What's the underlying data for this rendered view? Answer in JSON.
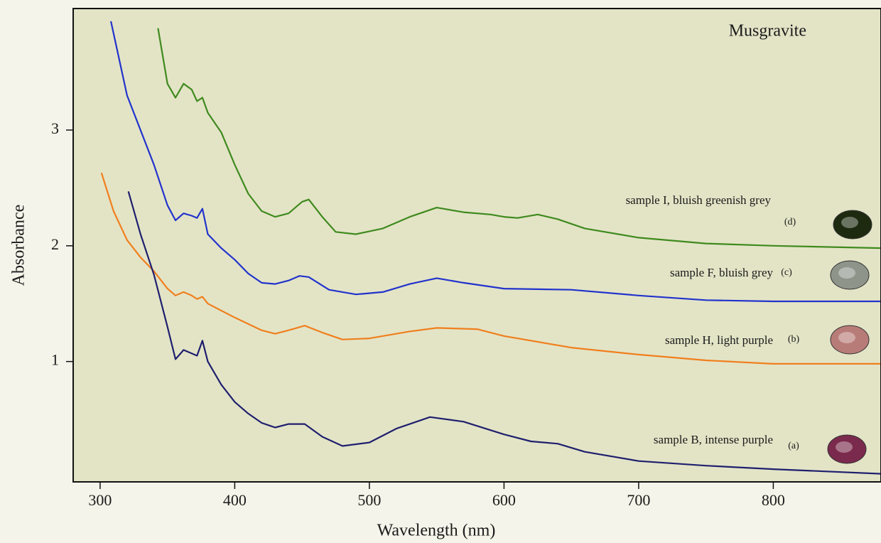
{
  "chart_data": {
    "type": "line",
    "title": "Musgravite",
    "x_label": "Wavelength (nm)",
    "y_label": "Absorbance",
    "xlim": [
      280,
      880
    ],
    "ylim": [
      -0.04,
      4.05
    ],
    "xticks": [
      300,
      400,
      500,
      600,
      700,
      800
    ],
    "yticks": [
      1,
      2,
      3
    ],
    "grid": false,
    "series": [
      {
        "name": "sample I, bluish greenish grey",
        "tag": "(d)",
        "color": "#3f8a1e",
        "x": [
          343,
          350,
          356,
          362,
          368,
          372,
          376,
          380,
          390,
          400,
          410,
          420,
          430,
          440,
          450,
          455,
          465,
          475,
          490,
          510,
          530,
          550,
          570,
          590,
          600,
          610,
          625,
          640,
          660,
          700,
          750,
          800,
          880
        ],
        "values": [
          3.88,
          3.4,
          3.28,
          3.4,
          3.35,
          3.25,
          3.28,
          3.15,
          2.98,
          2.7,
          2.45,
          2.3,
          2.25,
          2.28,
          2.38,
          2.4,
          2.25,
          2.12,
          2.1,
          2.15,
          2.25,
          2.33,
          2.29,
          2.27,
          2.25,
          2.24,
          2.27,
          2.23,
          2.15,
          2.07,
          2.02,
          2.0,
          1.98
        ]
      },
      {
        "name": "sample F, bluish grey",
        "tag": "(c)",
        "color": "#2233cc",
        "x": [
          308,
          320,
          340,
          350,
          356,
          362,
          368,
          372,
          376,
          380,
          390,
          400,
          410,
          420,
          430,
          440,
          448,
          455,
          470,
          490,
          510,
          530,
          550,
          570,
          600,
          650,
          700,
          750,
          800,
          880
        ],
        "values": [
          3.94,
          3.3,
          2.7,
          2.35,
          2.22,
          2.28,
          2.26,
          2.24,
          2.32,
          2.1,
          1.98,
          1.88,
          1.76,
          1.68,
          1.67,
          1.7,
          1.74,
          1.73,
          1.62,
          1.58,
          1.6,
          1.67,
          1.72,
          1.68,
          1.63,
          1.62,
          1.57,
          1.53,
          1.52,
          1.52
        ]
      },
      {
        "name": "sample H, light purple",
        "tag": "(b)",
        "color": "#f07f1e",
        "x": [
          301,
          310,
          320,
          330,
          340,
          350,
          356,
          362,
          368,
          372,
          376,
          380,
          390,
          400,
          420,
          430,
          440,
          452,
          465,
          480,
          500,
          530,
          550,
          580,
          600,
          650,
          700,
          750,
          800,
          880
        ],
        "values": [
          2.63,
          2.3,
          2.05,
          1.9,
          1.78,
          1.63,
          1.57,
          1.6,
          1.57,
          1.54,
          1.56,
          1.5,
          1.44,
          1.38,
          1.27,
          1.24,
          1.27,
          1.31,
          1.25,
          1.19,
          1.2,
          1.26,
          1.29,
          1.28,
          1.22,
          1.12,
          1.06,
          1.01,
          0.98,
          0.98
        ]
      },
      {
        "name": "sample B, intense purple",
        "tag": "(a)",
        "color": "#1f1f6e",
        "x": [
          321,
          330,
          340,
          350,
          356,
          362,
          368,
          372,
          376,
          380,
          390,
          400,
          410,
          420,
          430,
          440,
          452,
          465,
          480,
          500,
          520,
          545,
          570,
          600,
          620,
          640,
          660,
          700,
          750,
          800,
          880
        ],
        "values": [
          2.47,
          2.1,
          1.75,
          1.3,
          1.02,
          1.1,
          1.07,
          1.05,
          1.18,
          1.0,
          0.8,
          0.65,
          0.55,
          0.47,
          0.43,
          0.46,
          0.46,
          0.35,
          0.27,
          0.3,
          0.42,
          0.52,
          0.48,
          0.37,
          0.31,
          0.29,
          0.22,
          0.14,
          0.1,
          0.07,
          0.03
        ]
      }
    ]
  }
}
